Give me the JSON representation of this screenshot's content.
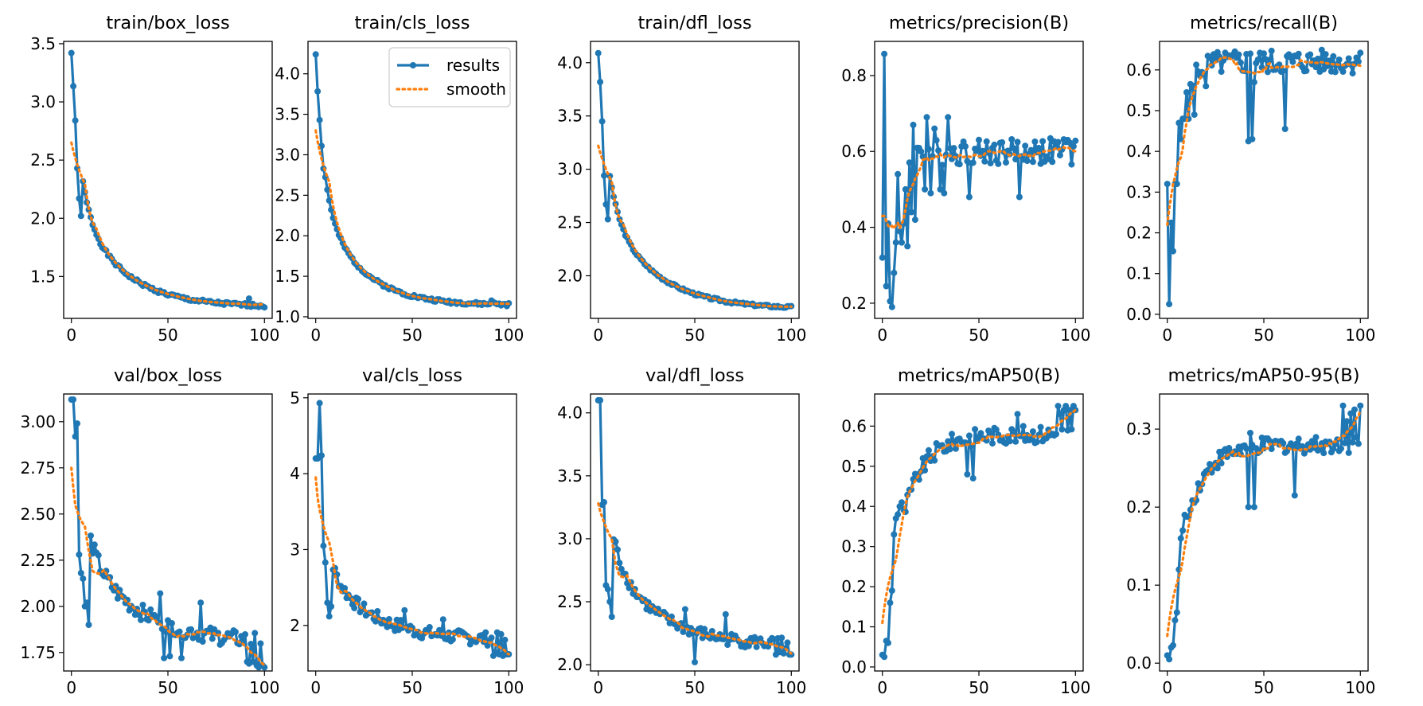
{
  "figure": {
    "legend": {
      "results_label": "results",
      "smooth_label": "smooth",
      "location": "upper-right of train/cls_loss panel"
    },
    "colors": {
      "results": "#1f77b4",
      "smooth": "#ff7f0e",
      "axes": "#000000",
      "background": "#ffffff"
    }
  },
  "chart_data": [
    {
      "type": "line",
      "title": "train/box_loss",
      "xlim": [
        -4,
        104
      ],
      "ylim": [
        1.14,
        3.52
      ],
      "xticks": [
        0,
        50,
        100
      ],
      "xtick_labels": [
        "0",
        "50",
        "100"
      ],
      "yticks": [
        1.5,
        2.0,
        2.5,
        3.0,
        3.5
      ],
      "ytick_labels": [
        "1.5",
        "2.0",
        "2.5",
        "3.0",
        "3.5"
      ],
      "pattern": {
        "kind": "decay",
        "start": 3.42,
        "end": 1.24,
        "rate": 4.5,
        "noise": 0.015,
        "seed": 1
      },
      "spikes": [
        [
          2,
          2.84
        ],
        [
          3,
          2.43
        ],
        [
          4,
          2.17
        ],
        [
          5,
          2.02
        ],
        [
          92,
          1.31
        ]
      ],
      "smooth": {
        "start": 2.65,
        "end": 1.26
      }
    },
    {
      "type": "line",
      "title": "train/cls_loss",
      "xlim": [
        -4,
        104
      ],
      "ylim": [
        0.98,
        4.4
      ],
      "xticks": [
        0,
        50,
        100
      ],
      "xtick_labels": [
        "0",
        "50",
        "100"
      ],
      "yticks": [
        1.0,
        1.5,
        2.0,
        2.5,
        3.0,
        3.5,
        4.0
      ],
      "ytick_labels": [
        "1.0",
        "1.5",
        "2.0",
        "2.5",
        "3.0",
        "3.5",
        "4.0"
      ],
      "pattern": {
        "kind": "decay",
        "start": 4.24,
        "end": 1.14,
        "rate": 4.0,
        "noise": 0.02,
        "seed": 2
      },
      "spikes": [
        [
          2,
          3.43
        ],
        [
          3,
          3.11
        ],
        [
          4,
          2.83
        ],
        [
          91,
          1.2
        ],
        [
          92,
          1.18
        ]
      ],
      "smooth": {
        "start": 3.3,
        "end": 1.16
      }
    },
    {
      "type": "line",
      "title": "train/dfl_loss",
      "xlim": [
        -4,
        104
      ],
      "ylim": [
        1.6,
        4.2
      ],
      "xticks": [
        0,
        50,
        100
      ],
      "xtick_labels": [
        "0",
        "50",
        "100"
      ],
      "yticks": [
        2.0,
        2.5,
        3.0,
        3.5,
        4.0
      ],
      "ytick_labels": [
        "2.0",
        "2.5",
        "3.0",
        "3.5",
        "4.0"
      ],
      "pattern": {
        "kind": "decay",
        "start": 4.09,
        "end": 1.69,
        "rate": 5.0,
        "noise": 0.012,
        "seed": 3
      },
      "spikes": [
        [
          2,
          3.45
        ],
        [
          3,
          2.94
        ],
        [
          4,
          2.67
        ],
        [
          5,
          2.53
        ]
      ],
      "smooth": {
        "start": 3.22,
        "end": 1.71
      }
    },
    {
      "type": "line",
      "title": "metrics/precision(B)",
      "xlim": [
        -4,
        104
      ],
      "ylim": [
        0.16,
        0.89
      ],
      "xticks": [
        0,
        50,
        100
      ],
      "xtick_labels": [
        "0",
        "50",
        "100"
      ],
      "yticks": [
        0.2,
        0.4,
        0.6,
        0.8
      ],
      "ytick_labels": [
        "0.2",
        "0.4",
        "0.6",
        "0.8"
      ],
      "pattern": {
        "kind": "rise",
        "start": 0.32,
        "end": 0.6,
        "rate": 2.5,
        "noise": 0.035,
        "seed": 4
      },
      "spikes": [
        [
          1,
          0.857
        ],
        [
          2,
          0.245
        ],
        [
          3,
          0.41
        ],
        [
          4,
          0.205
        ],
        [
          5,
          0.19
        ],
        [
          6,
          0.28
        ],
        [
          7,
          0.36
        ],
        [
          8,
          0.54
        ],
        [
          9,
          0.39
        ],
        [
          10,
          0.36
        ],
        [
          11,
          0.41
        ],
        [
          12,
          0.5
        ],
        [
          13,
          0.35
        ],
        [
          15,
          0.44
        ],
        [
          16,
          0.67
        ],
        [
          17,
          0.42
        ],
        [
          20,
          0.6
        ],
        [
          22,
          0.5
        ],
        [
          23,
          0.69
        ],
        [
          25,
          0.49
        ],
        [
          27,
          0.66
        ],
        [
          30,
          0.5
        ],
        [
          32,
          0.49
        ],
        [
          34,
          0.69
        ],
        [
          36,
          0.58
        ],
        [
          45,
          0.48
        ],
        [
          71,
          0.48
        ],
        [
          92,
          0.59
        ],
        [
          96,
          0.63
        ]
      ],
      "smooth": {
        "start": 0.43,
        "end": 0.6
      }
    },
    {
      "type": "line",
      "title": "metrics/recall(B)",
      "xlim": [
        -4,
        104
      ],
      "ylim": [
        -0.01,
        0.67
      ],
      "xticks": [
        0,
        50,
        100
      ],
      "xtick_labels": [
        "0",
        "50",
        "100"
      ],
      "yticks": [
        0.0,
        0.1,
        0.2,
        0.3,
        0.4,
        0.5,
        0.6
      ],
      "ytick_labels": [
        "0.0",
        "0.1",
        "0.2",
        "0.3",
        "0.4",
        "0.5",
        "0.6"
      ],
      "pattern": {
        "kind": "rise",
        "start": 0.32,
        "end": 0.62,
        "rate": 3.0,
        "noise": 0.03,
        "seed": 5
      },
      "spikes": [
        [
          1,
          0.025
        ],
        [
          2,
          0.225
        ],
        [
          3,
          0.155
        ],
        [
          4,
          0.32
        ],
        [
          5,
          0.32
        ],
        [
          6,
          0.47
        ],
        [
          7,
          0.43
        ],
        [
          8,
          0.48
        ],
        [
          9,
          0.48
        ],
        [
          10,
          0.545
        ],
        [
          11,
          0.48
        ],
        [
          12,
          0.565
        ],
        [
          14,
          0.49
        ],
        [
          20,
          0.56
        ],
        [
          42,
          0.425
        ],
        [
          43,
          0.64
        ],
        [
          44,
          0.43
        ],
        [
          45,
          0.57
        ],
        [
          55,
          0.6
        ],
        [
          61,
          0.455
        ],
        [
          98,
          0.63
        ]
      ],
      "smooth": {
        "start": 0.22,
        "end": 0.61
      }
    },
    {
      "type": "line",
      "title": "val/box_loss",
      "xlim": [
        -4,
        104
      ],
      "ylim": [
        1.65,
        3.15
      ],
      "xticks": [
        0,
        50,
        100
      ],
      "xtick_labels": [
        "0",
        "50",
        "100"
      ],
      "yticks": [
        1.75,
        2.0,
        2.25,
        2.5,
        2.75,
        3.0
      ],
      "ytick_labels": [
        "1.75",
        "2.00",
        "2.25",
        "2.50",
        "2.75",
        "3.00"
      ],
      "pattern": {
        "kind": "decay",
        "start": 3.12,
        "end": 1.8,
        "rate": 6.0,
        "noise": 0.045,
        "seed": 6
      },
      "spikes": [
        [
          1,
          3.12
        ],
        [
          2,
          2.92
        ],
        [
          3,
          2.99
        ],
        [
          4,
          2.28
        ],
        [
          5,
          2.18
        ],
        [
          6,
          2.15
        ],
        [
          7,
          2.0
        ],
        [
          8,
          2.02
        ],
        [
          9,
          1.9
        ],
        [
          42,
          1.95
        ],
        [
          46,
          2.07
        ],
        [
          48,
          1.72
        ],
        [
          51,
          1.73
        ],
        [
          57,
          1.72
        ],
        [
          67,
          2.02
        ],
        [
          91,
          1.7
        ],
        [
          92,
          1.69
        ],
        [
          94,
          1.7
        ],
        [
          96,
          1.68
        ],
        [
          97,
          1.67
        ],
        [
          99,
          1.68
        ],
        [
          100,
          1.67
        ]
      ],
      "smooth": {
        "start": 2.75,
        "end": 1.68
      }
    },
    {
      "type": "line",
      "title": "val/cls_loss",
      "xlim": [
        -4,
        104
      ],
      "ylim": [
        1.4,
        5.05
      ],
      "xticks": [
        0,
        50,
        100
      ],
      "xtick_labels": [
        "0",
        "50",
        "100"
      ],
      "yticks": [
        2,
        3,
        4,
        5
      ],
      "ytick_labels": [
        "2",
        "3",
        "4",
        "5"
      ],
      "pattern": {
        "kind": "decay",
        "start": 4.2,
        "end": 1.8,
        "rate": 5.0,
        "noise": 0.09,
        "seed": 7
      },
      "spikes": [
        [
          1,
          4.2
        ],
        [
          2,
          4.93
        ],
        [
          3,
          4.24
        ],
        [
          4,
          3.05
        ],
        [
          5,
          2.83
        ],
        [
          6,
          2.3
        ],
        [
          7,
          2.12
        ],
        [
          8,
          2.25
        ],
        [
          13,
          2.52
        ],
        [
          44,
          2.07
        ],
        [
          46,
          2.2
        ],
        [
          66,
          2.08
        ],
        [
          92,
          1.6
        ],
        [
          93,
          1.65
        ],
        [
          95,
          1.62
        ],
        [
          97,
          1.6
        ],
        [
          99,
          1.62
        ],
        [
          100,
          1.62
        ]
      ],
      "smooth": {
        "start": 3.95,
        "end": 1.62
      }
    },
    {
      "type": "line",
      "title": "val/dfl_loss",
      "xlim": [
        -4,
        104
      ],
      "ylim": [
        1.95,
        4.15
      ],
      "xticks": [
        0,
        50,
        100
      ],
      "xtick_labels": [
        "0",
        "50",
        "100"
      ],
      "yticks": [
        2.0,
        2.5,
        3.0,
        3.5,
        4.0
      ],
      "ytick_labels": [
        "2.0",
        "2.5",
        "3.0",
        "3.5",
        "4.0"
      ],
      "pattern": {
        "kind": "decay",
        "start": 4.1,
        "end": 2.15,
        "rate": 5.0,
        "noise": 0.05,
        "seed": 8
      },
      "spikes": [
        [
          1,
          4.1
        ],
        [
          2,
          3.27
        ],
        [
          3,
          3.29
        ],
        [
          4,
          2.63
        ],
        [
          5,
          2.6
        ],
        [
          6,
          2.5
        ],
        [
          7,
          2.38
        ],
        [
          45,
          2.44
        ],
        [
          50,
          2.02
        ],
        [
          66,
          2.4
        ],
        [
          92,
          2.08
        ],
        [
          94,
          2.1
        ],
        [
          96,
          2.09
        ],
        [
          99,
          2.08
        ],
        [
          100,
          2.08
        ]
      ],
      "smooth": {
        "start": 3.28,
        "end": 2.09
      }
    },
    {
      "type": "line",
      "title": "metrics/mAP50(B)",
      "xlim": [
        -4,
        104
      ],
      "ylim": [
        -0.01,
        0.68
      ],
      "xticks": [
        0,
        50,
        100
      ],
      "xtick_labels": [
        "0",
        "50",
        "100"
      ],
      "yticks": [
        0.0,
        0.1,
        0.2,
        0.3,
        0.4,
        0.5,
        0.6
      ],
      "ytick_labels": [
        "0.0",
        "0.1",
        "0.2",
        "0.3",
        "0.4",
        "0.5",
        "0.6"
      ],
      "pattern": {
        "kind": "rise",
        "start": 0.03,
        "end": 0.58,
        "rate": 5.5,
        "noise": 0.022,
        "seed": 9
      },
      "spikes": [
        [
          1,
          0.025
        ],
        [
          2,
          0.065
        ],
        [
          3,
          0.06
        ],
        [
          4,
          0.16
        ],
        [
          5,
          0.19
        ],
        [
          6,
          0.33
        ],
        [
          7,
          0.37
        ],
        [
          8,
          0.38
        ],
        [
          9,
          0.4
        ],
        [
          10,
          0.41
        ],
        [
          44,
          0.48
        ],
        [
          47,
          0.47
        ],
        [
          70,
          0.63
        ],
        [
          90,
          0.58
        ],
        [
          91,
          0.65
        ],
        [
          92,
          0.63
        ],
        [
          94,
          0.64
        ],
        [
          95,
          0.65
        ],
        [
          97,
          0.64
        ],
        [
          99,
          0.65
        ],
        [
          100,
          0.64
        ]
      ],
      "smooth": {
        "start": 0.11,
        "end": 0.64
      }
    },
    {
      "type": "line",
      "title": "metrics/mAP50-95(B)",
      "xlim": [
        -4,
        104
      ],
      "ylim": [
        -0.01,
        0.345
      ],
      "xticks": [
        0,
        50,
        100
      ],
      "xtick_labels": [
        "0",
        "50",
        "100"
      ],
      "yticks": [
        0.0,
        0.1,
        0.2,
        0.3
      ],
      "ytick_labels": [
        "0.0",
        "0.1",
        "0.2",
        "0.3"
      ],
      "pattern": {
        "kind": "rise",
        "start": 0.01,
        "end": 0.28,
        "rate": 5.0,
        "noise": 0.011,
        "seed": 10
      },
      "spikes": [
        [
          1,
          0.005
        ],
        [
          2,
          0.02
        ],
        [
          3,
          0.023
        ],
        [
          4,
          0.055
        ],
        [
          5,
          0.065
        ],
        [
          6,
          0.12
        ],
        [
          7,
          0.16
        ],
        [
          8,
          0.17
        ],
        [
          9,
          0.19
        ],
        [
          42,
          0.2
        ],
        [
          43,
          0.295
        ],
        [
          45,
          0.2
        ],
        [
          66,
          0.215
        ],
        [
          90,
          0.275
        ],
        [
          91,
          0.33
        ],
        [
          93,
          0.31
        ],
        [
          95,
          0.32
        ],
        [
          97,
          0.325
        ],
        [
          100,
          0.33
        ]
      ],
      "smooth": {
        "start": 0.035,
        "end": 0.325
      }
    }
  ]
}
